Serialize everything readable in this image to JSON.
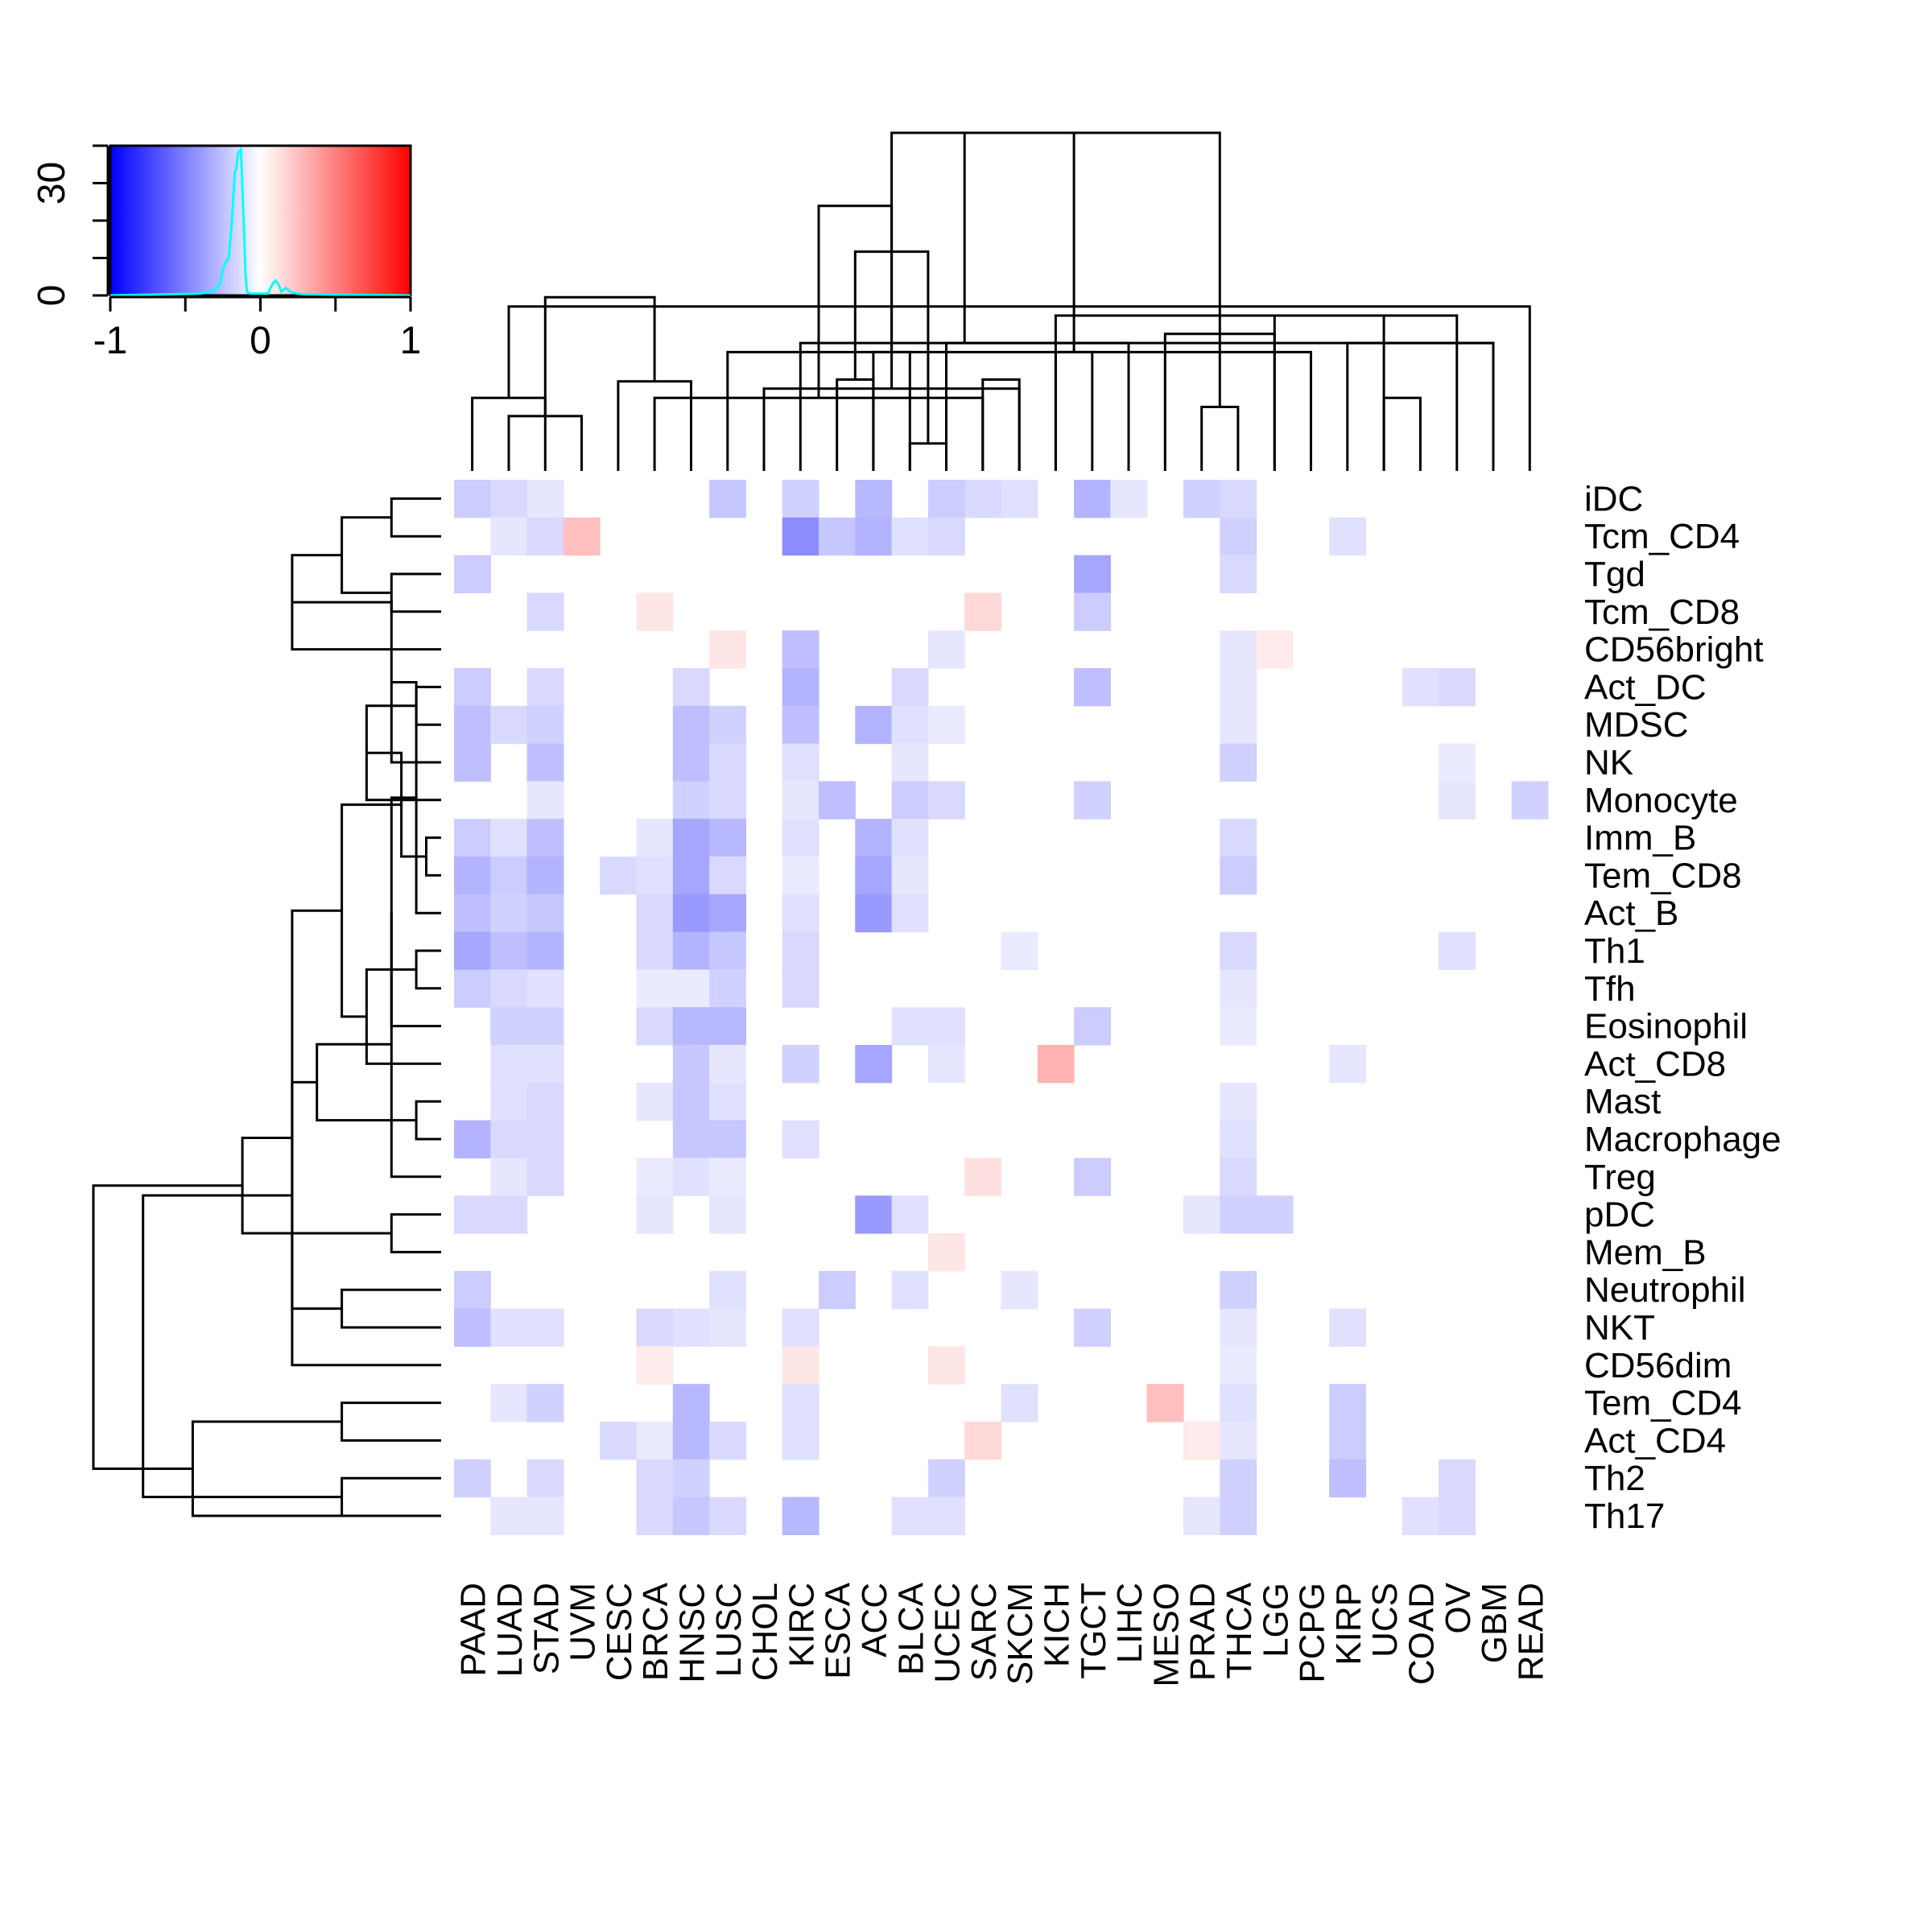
{
  "chart_data": {
    "type": "heatmap",
    "title": "",
    "columns": [
      "PAAD",
      "LUAD",
      "STAD",
      "UVM",
      "CESC",
      "BRCA",
      "HNSC",
      "LUSC",
      "CHOL",
      "KIRC",
      "ESCA",
      "ACC",
      "BLCA",
      "UCEC",
      "SARC",
      "SKCM",
      "KICH",
      "TGCT",
      "LIHC",
      "MESO",
      "PRAD",
      "THCA",
      "LGG",
      "PCPG",
      "KIRP",
      "UCS",
      "COAD",
      "OV",
      "GBM",
      "READ"
    ],
    "rows": [
      "iDC",
      "Tcm_CD4",
      "Tgd",
      "Tcm_CD8",
      "CD56bright",
      "Act_DC",
      "MDSC",
      "NK",
      "Monocyte",
      "Imm_B",
      "Tem_CD8",
      "Act_B",
      "Th1",
      "Tfh",
      "Eosinophil",
      "Act_CD8",
      "Mast",
      "Macrophage",
      "Treg",
      "pDC",
      "Mem_B",
      "Neutrophil",
      "NKT",
      "CD56dim",
      "Tem_CD4",
      "Act_CD4",
      "Th2",
      "Th17"
    ],
    "values": [
      [
        -0.2,
        -0.15,
        -0.1,
        0,
        0,
        0,
        0,
        -0.22,
        0,
        -0.18,
        0,
        -0.28,
        0,
        -0.2,
        -0.15,
        -0.12,
        0,
        -0.3,
        -0.1,
        0,
        -0.18,
        -0.15,
        0,
        0,
        0,
        0,
        0,
        0,
        0,
        0
      ],
      [
        0,
        -0.1,
        -0.15,
        0.25,
        0,
        0,
        0,
        0,
        0,
        -0.45,
        -0.22,
        -0.3,
        -0.12,
        -0.15,
        0,
        0,
        0,
        0,
        0,
        0,
        0,
        -0.18,
        0,
        0,
        -0.12,
        0,
        0,
        0,
        0,
        0
      ],
      [
        -0.2,
        0,
        0,
        0,
        0,
        0,
        0,
        0,
        0,
        0,
        0,
        0,
        0,
        0,
        0,
        0,
        0,
        -0.35,
        0,
        0,
        0,
        -0.15,
        0,
        0,
        0,
        0,
        0,
        0,
        0,
        0
      ],
      [
        0,
        0,
        -0.15,
        0,
        0,
        0.1,
        0,
        0,
        0,
        0,
        0,
        0,
        0,
        0,
        0.15,
        0,
        0,
        -0.2,
        0,
        0,
        0,
        0,
        0,
        0,
        0,
        0,
        0,
        0,
        0,
        0
      ],
      [
        0,
        0,
        0,
        0,
        0,
        0,
        0,
        0.1,
        0,
        -0.25,
        0,
        0,
        0,
        -0.1,
        0,
        0,
        0,
        0,
        0,
        0,
        0,
        -0.1,
        0.08,
        0,
        0,
        0,
        0,
        0,
        0,
        0
      ],
      [
        -0.2,
        0,
        -0.15,
        0,
        0,
        0,
        -0.15,
        0,
        0,
        -0.3,
        0,
        0,
        -0.15,
        0,
        0,
        0,
        0,
        -0.25,
        0,
        0,
        0,
        -0.1,
        0,
        0,
        0,
        0,
        -0.12,
        -0.15,
        0,
        0
      ],
      [
        -0.25,
        -0.15,
        -0.18,
        0,
        0,
        0,
        -0.25,
        -0.18,
        0,
        -0.25,
        0,
        -0.3,
        -0.12,
        -0.08,
        0,
        0,
        0,
        0,
        0,
        0,
        0,
        -0.1,
        0,
        0,
        0,
        0,
        0,
        0,
        0,
        0
      ],
      [
        -0.25,
        0,
        -0.25,
        0,
        0,
        0,
        -0.25,
        -0.15,
        0,
        -0.12,
        0,
        0,
        -0.1,
        0,
        0,
        0,
        0,
        0,
        0,
        0,
        0,
        -0.18,
        0,
        0,
        0,
        0,
        0,
        -0.08,
        0,
        0
      ],
      [
        0,
        0,
        -0.1,
        0,
        0,
        0,
        -0.18,
        -0.15,
        0,
        -0.1,
        -0.25,
        0,
        -0.2,
        -0.15,
        0,
        0,
        0,
        -0.18,
        0,
        0,
        0,
        0,
        0,
        0,
        0,
        0,
        0,
        -0.1,
        0,
        -0.18
      ],
      [
        -0.2,
        -0.12,
        -0.25,
        0,
        0,
        -0.1,
        -0.35,
        -0.28,
        0,
        -0.12,
        0,
        -0.3,
        -0.12,
        0,
        0,
        0,
        0,
        0,
        0,
        0,
        0,
        -0.15,
        0,
        0,
        0,
        0,
        0,
        0,
        0,
        0
      ],
      [
        -0.3,
        -0.2,
        -0.3,
        0,
        -0.15,
        -0.12,
        -0.35,
        -0.15,
        0,
        -0.08,
        0,
        -0.35,
        -0.1,
        0,
        0,
        0,
        0,
        0,
        0,
        0,
        0,
        -0.2,
        0,
        0,
        0,
        0,
        0,
        0,
        0,
        0
      ],
      [
        -0.25,
        -0.18,
        -0.22,
        0,
        0,
        -0.15,
        -0.4,
        -0.35,
        0,
        -0.12,
        0,
        -0.4,
        -0.12,
        0,
        0,
        0,
        0,
        0,
        0,
        0,
        0,
        0,
        0,
        0,
        0,
        0,
        0,
        0,
        0,
        0
      ],
      [
        -0.35,
        -0.25,
        -0.3,
        0,
        0,
        -0.15,
        -0.3,
        -0.22,
        0,
        -0.15,
        0,
        0,
        0,
        0,
        0,
        -0.08,
        0,
        0,
        0,
        0,
        0,
        -0.15,
        0,
        0,
        0,
        0,
        0,
        -0.12,
        0,
        0
      ],
      [
        -0.2,
        -0.15,
        -0.12,
        0,
        0,
        -0.08,
        -0.08,
        -0.18,
        0,
        -0.15,
        0,
        0,
        0,
        0,
        0,
        0,
        0,
        0,
        0,
        0,
        0,
        -0.1,
        0,
        0,
        0,
        0,
        0,
        0,
        0,
        0
      ],
      [
        0,
        -0.18,
        -0.18,
        0,
        0,
        -0.15,
        -0.28,
        -0.28,
        0,
        0,
        0,
        0,
        -0.12,
        -0.12,
        0,
        0,
        0,
        -0.2,
        0,
        0,
        0,
        -0.08,
        0,
        0,
        0,
        0,
        0,
        0,
        0,
        0
      ],
      [
        0,
        -0.12,
        -0.12,
        0,
        0,
        0,
        -0.22,
        -0.1,
        0,
        -0.18,
        0,
        -0.35,
        0,
        -0.1,
        0,
        0,
        0.3,
        0,
        0,
        0,
        0,
        0,
        0,
        0,
        -0.1,
        0,
        0,
        0,
        0,
        0
      ],
      [
        0,
        -0.12,
        -0.15,
        0,
        0,
        -0.1,
        -0.22,
        -0.12,
        0,
        0,
        0,
        0,
        0,
        0,
        0,
        0,
        0,
        0,
        0,
        0,
        0,
        -0.1,
        0,
        0,
        0,
        0,
        0,
        0,
        0,
        0
      ],
      [
        -0.3,
        -0.15,
        -0.15,
        0,
        0,
        0,
        -0.22,
        -0.22,
        0,
        -0.12,
        0,
        0,
        0,
        0,
        0,
        0,
        0,
        0,
        0,
        0,
        0,
        -0.12,
        0,
        0,
        0,
        0,
        0,
        0,
        0,
        0
      ],
      [
        0,
        -0.1,
        -0.15,
        0,
        0,
        -0.08,
        -0.12,
        -0.08,
        0,
        0,
        0,
        0,
        0,
        0,
        0.12,
        0,
        0,
        -0.2,
        0,
        0,
        0,
        -0.15,
        0,
        0,
        0,
        0,
        0,
        0,
        0,
        0
      ],
      [
        -0.15,
        -0.15,
        0,
        0,
        0,
        -0.1,
        0,
        -0.1,
        0,
        0,
        0,
        -0.4,
        -0.12,
        0,
        0,
        0,
        0,
        0,
        0,
        0,
        -0.1,
        -0.18,
        -0.18,
        0,
        0,
        0,
        0,
        0,
        0,
        0
      ],
      [
        0,
        0,
        0,
        0,
        0,
        0,
        0,
        0,
        0,
        0,
        0,
        0,
        0,
        0.1,
        0,
        0,
        0,
        0,
        0,
        0,
        0,
        0,
        0,
        0,
        0,
        0,
        0,
        0,
        0,
        0
      ],
      [
        -0.2,
        0,
        0,
        0,
        0,
        0,
        0,
        -0.12,
        0,
        0,
        -0.2,
        0,
        -0.12,
        0,
        0,
        -0.1,
        0,
        0,
        0,
        0,
        0,
        -0.18,
        0,
        0,
        0,
        0,
        0,
        0,
        0,
        0
      ],
      [
        -0.25,
        -0.12,
        -0.12,
        0,
        0,
        -0.15,
        -0.12,
        -0.1,
        0,
        -0.12,
        0,
        0,
        0,
        0,
        0,
        0,
        0,
        -0.18,
        0,
        0,
        0,
        -0.1,
        0,
        0,
        -0.12,
        0,
        0,
        0,
        0,
        0
      ],
      [
        0,
        0,
        0,
        0,
        0,
        0.08,
        0,
        0,
        0,
        0.1,
        0,
        0,
        0,
        0.1,
        0,
        0,
        0,
        0,
        0,
        0,
        0,
        -0.08,
        0,
        0,
        0,
        0,
        0,
        0,
        0,
        0
      ],
      [
        0,
        -0.1,
        -0.18,
        0,
        0,
        0,
        -0.28,
        0,
        0,
        -0.12,
        0,
        0,
        0,
        0,
        0,
        -0.12,
        0,
        0,
        0,
        0.25,
        0,
        -0.12,
        0,
        0,
        -0.2,
        0,
        0,
        0,
        0,
        0
      ],
      [
        0,
        0,
        0,
        0,
        -0.15,
        -0.08,
        -0.28,
        -0.15,
        0,
        -0.12,
        0,
        0,
        0,
        0,
        0.15,
        0,
        0,
        0,
        0,
        0,
        0.08,
        -0.1,
        0,
        0,
        -0.2,
        0,
        0,
        0,
        0,
        0
      ],
      [
        -0.18,
        0,
        -0.15,
        0,
        0,
        -0.15,
        -0.18,
        0,
        0,
        0,
        0,
        0,
        0,
        -0.18,
        0,
        0,
        0,
        0,
        0,
        0,
        0,
        -0.18,
        0,
        0,
        -0.25,
        0,
        0,
        -0.15,
        0,
        0
      ],
      [
        0,
        -0.1,
        -0.1,
        0,
        0,
        -0.15,
        -0.22,
        -0.15,
        0,
        -0.28,
        0,
        0,
        -0.12,
        -0.12,
        0,
        0,
        0,
        0,
        0,
        0,
        -0.1,
        -0.18,
        0,
        0,
        0,
        0,
        -0.12,
        -0.15,
        0,
        0
      ]
    ],
    "color_range": [
      -1,
      1
    ],
    "colors": {
      "low": "#0000ff",
      "mid": "#ffffff",
      "high": "#ff0000",
      "histogram": "#00ffff",
      "line": "#000000"
    },
    "key": {
      "x_ticks": [
        -1,
        -0.5,
        0,
        0.5,
        1
      ],
      "x_tick_labels": [
        "-1",
        "0",
        "1"
      ],
      "y_tick_labels": [
        "0",
        "30"
      ],
      "y_range": [
        0,
        40
      ],
      "histogram": [
        [
          -0.4,
          0.5
        ],
        [
          -0.35,
          1
        ],
        [
          -0.3,
          1.5
        ],
        [
          -0.27,
          3
        ],
        [
          -0.25,
          7
        ],
        [
          -0.23,
          9
        ],
        [
          -0.21,
          10
        ],
        [
          -0.19,
          20
        ],
        [
          -0.17,
          33
        ],
        [
          -0.16,
          34
        ],
        [
          -0.15,
          38
        ],
        [
          -0.13,
          39
        ],
        [
          -0.12,
          29
        ],
        [
          -0.11,
          18
        ],
        [
          -0.1,
          6
        ],
        [
          -0.09,
          1
        ],
        [
          -0.07,
          0.5
        ],
        [
          0.05,
          0.5
        ],
        [
          0.08,
          3
        ],
        [
          0.1,
          4
        ],
        [
          0.12,
          3
        ],
        [
          0.14,
          1
        ],
        [
          0.17,
          2
        ],
        [
          0.2,
          1
        ],
        [
          0.24,
          0.5
        ],
        [
          0.3,
          0.3
        ]
      ]
    },
    "col_dendrogram": [
      [
        0,
        2,
        0.8
      ],
      [
        1,
        3,
        0.6
      ],
      [
        4,
        6,
        0.98
      ],
      [
        10,
        11,
        1.0
      ],
      [
        12,
        13,
        0.3
      ],
      [
        14,
        5,
        0.8
      ],
      [
        8,
        15,
        0.9
      ],
      [
        16,
        17,
        1.3
      ],
      [
        18,
        9,
        1.4
      ],
      [
        11,
        12,
        1.3
      ],
      [
        20,
        21,
        0.7
      ],
      [
        19,
        22,
        1.5
      ],
      [
        7,
        23,
        1.3
      ],
      [
        14,
        15,
        1.0
      ],
      [
        25,
        26,
        0.8
      ],
      [
        16,
        27,
        1.7
      ],
      [
        24,
        28,
        1.4
      ],
      [
        29,
        30,
        1.8
      ],
      [
        13,
        28,
        1.4
      ],
      [
        22,
        25,
        1.7
      ],
      [
        31,
        32,
        1.9
      ],
      [
        33,
        34,
        2.4
      ],
      [
        35,
        36,
        2.9
      ],
      [
        38,
        37,
        3.7
      ],
      [
        39,
        40,
        3.7
      ]
    ],
    "row_dendrogram": [
      [
        0,
        1,
        0.1
      ],
      [
        2,
        3,
        0.1
      ],
      [
        28,
        29,
        0.2
      ],
      [
        30,
        4,
        0.3
      ],
      [
        5,
        6,
        0.05
      ],
      [
        31,
        7,
        0.1
      ],
      [
        32,
        8,
        0.15
      ],
      [
        9,
        10,
        0.03
      ],
      [
        33,
        11,
        0.05
      ],
      [
        12,
        13,
        0.05
      ],
      [
        34,
        35,
        0.08
      ],
      [
        36,
        14,
        0.1
      ],
      [
        37,
        15,
        0.15
      ],
      [
        16,
        17,
        0.05
      ],
      [
        39,
        18,
        0.1
      ],
      [
        38,
        40,
        0.2
      ],
      [
        19,
        20,
        0.1
      ],
      [
        41,
        42,
        0.25
      ],
      [
        21,
        22,
        0.2
      ],
      [
        43,
        23,
        0.3
      ],
      [
        24,
        25,
        0.2
      ],
      [
        26,
        27,
        0.2
      ],
      [
        45,
        46,
        0.3
      ],
      [
        44,
        47,
        0.4
      ],
      [
        48,
        27,
        0.5
      ],
      [
        49,
        50,
        0.6
      ],
      [
        51,
        52,
        0.7
      ]
    ]
  }
}
